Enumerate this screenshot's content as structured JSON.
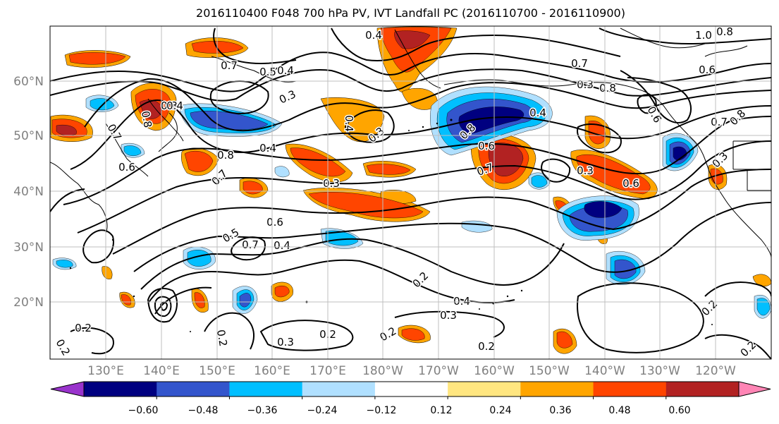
{
  "title": "2016110400 F048 700 hPa PV, IVT Landfall PC (2016110700 - 2016110900)",
  "map": {
    "lon_labels": [
      "130°E",
      "140°E",
      "150°E",
      "160°E",
      "170°E",
      "180°W",
      "170°W",
      "160°W",
      "150°W",
      "140°W",
      "130°W",
      "120°W"
    ],
    "lat_labels": [
      "20°N",
      "30°N",
      "40°N",
      "50°N",
      "60°N"
    ],
    "contour_labels": [
      {
        "text": "0.4"
      },
      {
        "text": "0.7"
      },
      {
        "text": "0.5"
      },
      {
        "text": "0.4"
      },
      {
        "text": "0.3"
      },
      {
        "text": "1.0"
      },
      {
        "text": "0.8"
      },
      {
        "text": "0.6"
      },
      {
        "text": "0.7"
      },
      {
        "text": "0.3"
      },
      {
        "text": "0.8"
      },
      {
        "text": "0.6"
      },
      {
        "text": "0.7"
      },
      {
        "text": "0.8"
      },
      {
        "text": "0.3"
      },
      {
        "text": "0.4"
      },
      {
        "text": "0.3"
      },
      {
        "text": "0.4"
      },
      {
        "text": "0.8"
      },
      {
        "text": "0.4"
      },
      {
        "text": "0.7"
      },
      {
        "text": "0.6"
      },
      {
        "text": "0.7"
      },
      {
        "text": "0.8"
      },
      {
        "text": "0.3"
      },
      {
        "text": "0.5"
      },
      {
        "text": "0.6"
      },
      {
        "text": "0.4"
      },
      {
        "text": "0.7"
      },
      {
        "text": "0.8"
      },
      {
        "text": "0.7"
      },
      {
        "text": "0.6"
      },
      {
        "text": "0.3"
      },
      {
        "text": "0.4"
      },
      {
        "text": "0.2"
      },
      {
        "text": "0.2"
      },
      {
        "text": "0.3"
      },
      {
        "text": "0.4"
      },
      {
        "text": "0.2"
      },
      {
        "text": "0.3"
      },
      {
        "text": "0.2"
      },
      {
        "text": "0.2"
      },
      {
        "text": "0.2"
      },
      {
        "text": "0.2"
      },
      {
        "text": "0.2"
      },
      {
        "text": "0.2"
      },
      {
        "text": "0.3"
      },
      {
        "text": "0.6"
      }
    ]
  },
  "colorbar": {
    "tick_labels": [
      "−0.60",
      "−0.48",
      "−0.36",
      "−0.24",
      "−0.12",
      "0.12",
      "0.24",
      "0.36",
      "0.48",
      "0.60"
    ],
    "colors": [
      "#9933cc",
      "#000080",
      "#3355cc",
      "#00bfff",
      "#b0e0ff",
      "#ffffff",
      "#ffe680",
      "#ffa500",
      "#ff4500",
      "#b22222",
      "#ff85b5"
    ]
  }
}
